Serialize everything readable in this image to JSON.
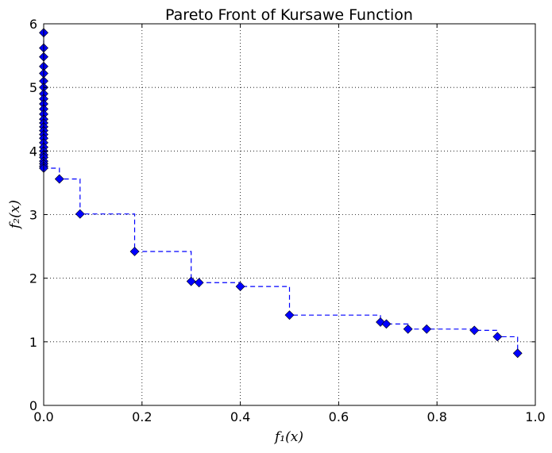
{
  "chart_data": {
    "type": "scatter",
    "title": "Pareto Front of Kursawe Function",
    "xlabel": "f₁(x)",
    "ylabel": "f₂(x)",
    "xlim": [
      0,
      1.0
    ],
    "ylim": [
      0,
      6
    ],
    "x_ticks": [
      0,
      0.2,
      0.4,
      0.6,
      0.8,
      1.0
    ],
    "y_ticks": [
      0,
      1,
      2,
      3,
      4,
      5,
      6
    ],
    "x_tick_labels": [
      "0.0",
      "0.2",
      "0.4",
      "0.6",
      "0.8",
      "1.0"
    ],
    "y_tick_labels": [
      "0",
      "1",
      "2",
      "3",
      "4",
      "5",
      "6"
    ],
    "grid": true,
    "series": [
      {
        "style": "dashed steps with diamond markers",
        "color": "#0000ff",
        "x": [
          0.0,
          0.0,
          0.0,
          0.0,
          0.0,
          0.0,
          0.0,
          0.0,
          0.0,
          0.0,
          0.0,
          0.0,
          0.0,
          0.0,
          0.0,
          0.0,
          0.0,
          0.0,
          0.0,
          0.0,
          0.0,
          0.0,
          0.0,
          0.0,
          0.0,
          0.0,
          0.0,
          0.032,
          0.074,
          0.185,
          0.3,
          0.316,
          0.4,
          0.5,
          0.685,
          0.697,
          0.741,
          0.779,
          0.876,
          0.923,
          0.964
        ],
        "y": [
          5.86,
          5.62,
          5.48,
          5.33,
          5.22,
          5.1,
          5.0,
          4.9,
          4.82,
          4.74,
          4.66,
          4.58,
          4.5,
          4.44,
          4.38,
          4.32,
          4.26,
          4.2,
          4.13,
          4.06,
          4.0,
          3.94,
          3.9,
          3.84,
          3.8,
          3.76,
          3.73,
          3.56,
          3.01,
          2.42,
          1.95,
          1.93,
          1.87,
          1.42,
          1.31,
          1.28,
          1.2,
          1.2,
          1.18,
          1.08,
          0.82
        ]
      }
    ]
  }
}
